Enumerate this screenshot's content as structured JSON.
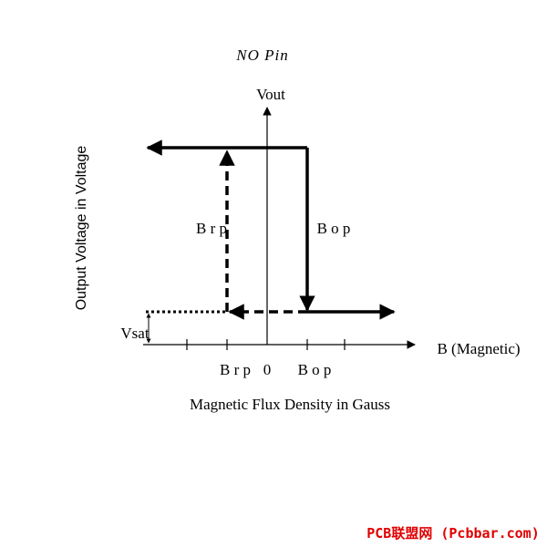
{
  "title": "NO Pin",
  "y_axis": {
    "label": "Vout",
    "title": "Output Voltage in Voltage"
  },
  "x_axis": {
    "label": "B (Magnetic)",
    "title": "Magnetic Flux Density in Gauss",
    "ticks": [
      "B r p",
      "0",
      "B o p"
    ]
  },
  "curve_labels": {
    "release": "B r p",
    "operate": "B o p",
    "saturation": "Vsat"
  },
  "watermark": "PCB联盟网 (Pcbbar.com)"
}
